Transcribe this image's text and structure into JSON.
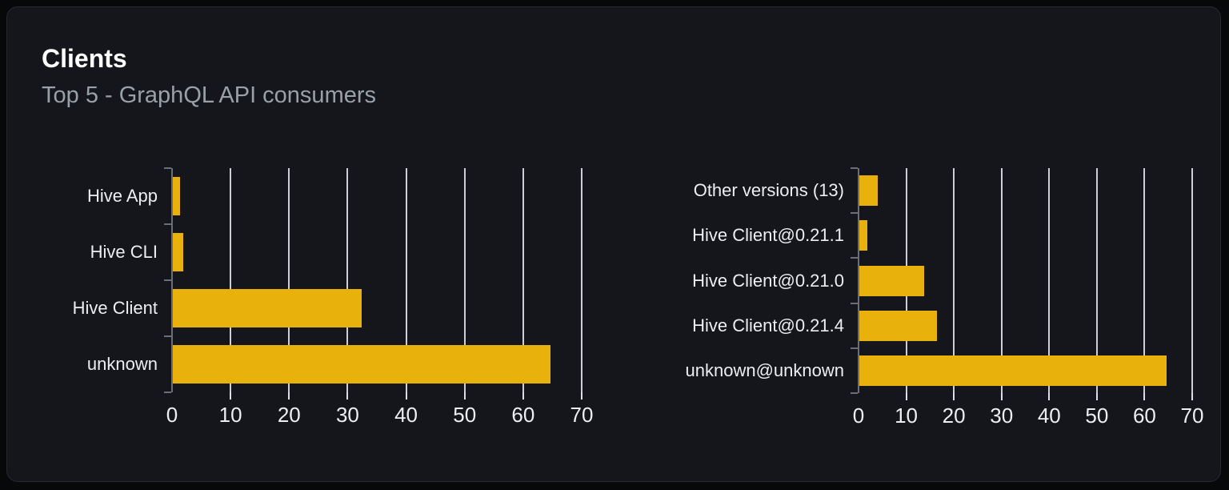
{
  "card": {
    "title": "Clients",
    "subtitle": "Top 5 - GraphQL API consumers"
  },
  "colors": {
    "bar": "#e9b10c",
    "card_background": "#14161b",
    "page_background": "#07080a",
    "grid": "#dce0e6",
    "axis": "#696e77"
  },
  "chart_data": [
    {
      "type": "bar",
      "orientation": "horizontal",
      "name": "clients-by-name",
      "categories": [
        "Hive App",
        "Hive CLI",
        "Hive Client",
        "unknown"
      ],
      "values": [
        1.2,
        1.8,
        32.2,
        64.5
      ],
      "xlim": [
        0,
        70
      ],
      "xticks": [
        0,
        10,
        20,
        30,
        40,
        50,
        60,
        70
      ],
      "grid": true,
      "legend": false,
      "title": "",
      "xlabel": "",
      "ylabel": ""
    },
    {
      "type": "bar",
      "orientation": "horizontal",
      "name": "clients-by-version",
      "categories": [
        "Other versions (13)",
        "Hive Client@0.21.1",
        "Hive Client@0.21.0",
        "Hive Client@0.21.4",
        "unknown@unknown"
      ],
      "values": [
        3.8,
        1.7,
        13.6,
        16.3,
        64.5
      ],
      "xlim": [
        0,
        70
      ],
      "xticks": [
        0,
        10,
        20,
        30,
        40,
        50,
        60,
        70
      ],
      "grid": true,
      "legend": false,
      "title": "",
      "xlabel": "",
      "ylabel": ""
    }
  ]
}
